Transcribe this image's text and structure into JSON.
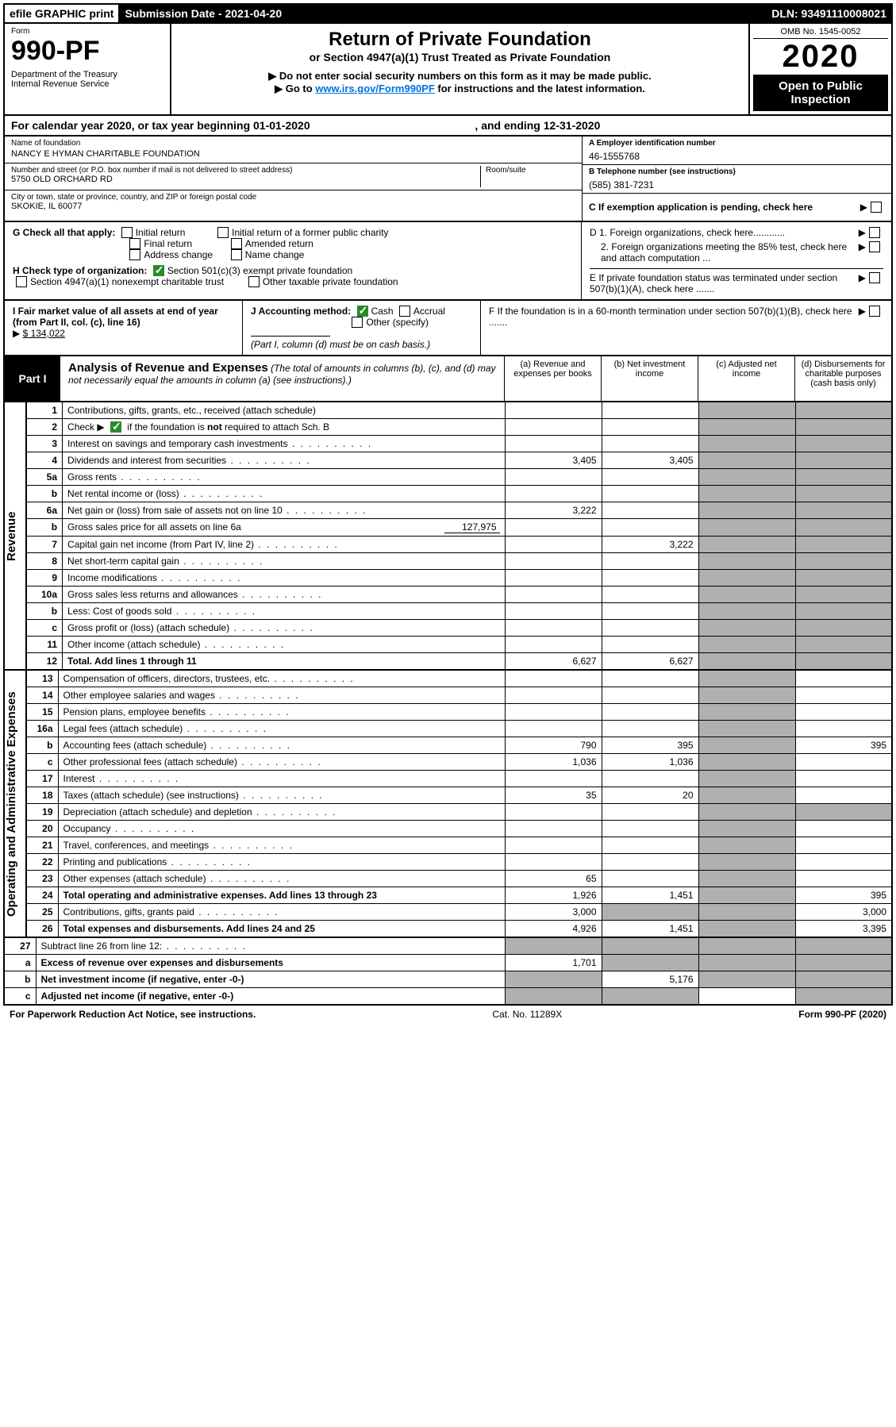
{
  "topstrip": {
    "efile": "efile GRAPHIC print",
    "subdate_lbl": "Submission Date - 2021-04-20",
    "dln_lbl": "DLN: 93491110008021"
  },
  "titleblock": {
    "form_word": "Form",
    "form_no": "990-PF",
    "dept1": "Department of the Treasury",
    "dept2": "Internal Revenue Service",
    "title": "Return of Private Foundation",
    "sub": "or Section 4947(a)(1) Trust Treated as Private Foundation",
    "warn": "▶ Do not enter social security numbers on this form as it may be made public.",
    "goto_pre": "▶ Go to ",
    "goto_link": "www.irs.gov/Form990PF",
    "goto_post": " for instructions and the latest information.",
    "omb": "OMB No. 1545-0052",
    "year": "2020",
    "open": "Open to Public Inspection"
  },
  "cal": {
    "text_a": "For calendar year 2020, or tax year beginning ",
    "begin": "01-01-2020",
    "mid": " , and ending ",
    "end": "12-31-2020"
  },
  "hdr_left": {
    "name_lbl": "Name of foundation",
    "name": "NANCY E HYMAN CHARITABLE FOUNDATION",
    "addr_lbl": "Number and street (or P.O. box number if mail is not delivered to street address)",
    "addr": "5750 OLD ORCHARD RD",
    "room_lbl": "Room/suite",
    "city_lbl": "City or town, state or province, country, and ZIP or foreign postal code",
    "city": "SKOKIE, IL  60077"
  },
  "hdr_right": {
    "a_lbl": "A Employer identification number",
    "a_val": "46-1555768",
    "b_lbl": "B Telephone number (see instructions)",
    "b_val": "(585) 381-7231",
    "c_lbl": "C If exemption application is pending, check here",
    "d1": "D 1. Foreign organizations, check here............",
    "d2": "2. Foreign organizations meeting the 85% test, check here and attach computation ...",
    "e": "E  If private foundation status was terminated under section 507(b)(1)(A), check here .......",
    "f": "F  If the foundation is in a 60-month termination under section 507(b)(1)(B), check here .......",
    "arrow": "▶"
  },
  "g": {
    "lbl": "G Check all that apply:",
    "o1": "Initial return",
    "o2": "Final return",
    "o3": "Address change",
    "o4": "Initial return of a former public charity",
    "o5": "Amended return",
    "o6": "Name change"
  },
  "h": {
    "lbl": "H Check type of organization:",
    "o1": "Section 501(c)(3) exempt private foundation",
    "o2": "Section 4947(a)(1) nonexempt charitable trust",
    "o3": "Other taxable private foundation"
  },
  "i": {
    "lbl": "I Fair market value of all assets at end of year (from Part II, col. (c), line 16)",
    "arrow": "▶",
    "val": "$  134,022"
  },
  "j": {
    "lbl": "J Accounting method:",
    "cash": "Cash",
    "accrual": "Accrual",
    "other": "Other (specify)",
    "note": "(Part I, column (d) must be on cash basis.)"
  },
  "part1": {
    "plab": "Part I",
    "title": "Analysis of Revenue and Expenses",
    "sub": " (The total of amounts in columns (b), (c), and (d) may not necessarily equal the amounts in column (a) (see instructions).)",
    "cola": "(a)   Revenue and expenses per books",
    "colb": "(b)   Net investment income",
    "colc": "(c)   Adjusted net income",
    "cold": "(d)   Disbursements for charitable purposes (cash basis only)"
  },
  "side": {
    "rev": "Revenue",
    "exp": "Operating and Administrative Expenses"
  },
  "rows": [
    {
      "n": "1",
      "d": "Contributions, gifts, grants, etc., received (attach schedule)"
    },
    {
      "n": "2",
      "d_pre": "Check ▶ ",
      "d_post": " if the foundation is ",
      "d_bold": "not",
      "d_end": " required to attach Sch. B",
      "ck": true
    },
    {
      "n": "3",
      "d": "Interest on savings and temporary cash investments"
    },
    {
      "n": "4",
      "d": "Dividends and interest from securities",
      "a": "3,405",
      "b": "3,405"
    },
    {
      "n": "5a",
      "d": "Gross rents"
    },
    {
      "n": "b",
      "d": "Net rental income or (loss)",
      "indent": true
    },
    {
      "n": "6a",
      "d": "Net gain or (loss) from sale of assets not on line 10",
      "a": "3,222"
    },
    {
      "n": "b",
      "d_pre": "Gross sales price for all assets on line 6a ",
      "inline": "127,975",
      "indent": true
    },
    {
      "n": "7",
      "d": "Capital gain net income (from Part IV, line 2)",
      "b": "3,222"
    },
    {
      "n": "8",
      "d": "Net short-term capital gain"
    },
    {
      "n": "9",
      "d": "Income modifications"
    },
    {
      "n": "10a",
      "d": "Gross sales less returns and allowances",
      "indent": true
    },
    {
      "n": "b",
      "d": "Less: Cost of goods sold",
      "indent": true
    },
    {
      "n": "c",
      "d": "Gross profit or (loss) (attach schedule)",
      "indent": true
    },
    {
      "n": "11",
      "d": "Other income (attach schedule)"
    },
    {
      "n": "12",
      "d": "Total. Add lines 1 through 11",
      "bold": true,
      "a": "6,627",
      "b": "6,627"
    }
  ],
  "exprows": [
    {
      "n": "13",
      "d": "Compensation of officers, directors, trustees, etc."
    },
    {
      "n": "14",
      "d": "Other employee salaries and wages"
    },
    {
      "n": "15",
      "d": "Pension plans, employee benefits"
    },
    {
      "n": "16a",
      "d": "Legal fees (attach schedule)"
    },
    {
      "n": "b",
      "d": "Accounting fees (attach schedule)",
      "a": "790",
      "b": "395",
      "dd": "395",
      "indent": true
    },
    {
      "n": "c",
      "d": "Other professional fees (attach schedule)",
      "a": "1,036",
      "b": "1,036",
      "indent": true
    },
    {
      "n": "17",
      "d": "Interest"
    },
    {
      "n": "18",
      "d": "Taxes (attach schedule) (see instructions)",
      "a": "35",
      "b": "20"
    },
    {
      "n": "19",
      "d": "Depreciation (attach schedule) and depletion"
    },
    {
      "n": "20",
      "d": "Occupancy"
    },
    {
      "n": "21",
      "d": "Travel, conferences, and meetings"
    },
    {
      "n": "22",
      "d": "Printing and publications"
    },
    {
      "n": "23",
      "d": "Other expenses (attach schedule)",
      "a": "65",
      "icon": true
    },
    {
      "n": "24",
      "d": "Total operating and administrative expenses. Add lines 13 through 23",
      "bold": true,
      "a": "1,926",
      "b": "1,451",
      "dd": "395"
    },
    {
      "n": "25",
      "d": "Contributions, gifts, grants paid",
      "a": "3,000",
      "dd": "3,000"
    },
    {
      "n": "26",
      "d": "Total expenses and disbursements. Add lines 24 and 25",
      "bold": true,
      "a": "4,926",
      "b": "1,451",
      "dd": "3,395"
    }
  ],
  "bottomrows": [
    {
      "n": "27",
      "d": "Subtract line 26 from line 12:"
    },
    {
      "n": "a",
      "d": "Excess of revenue over expenses and disbursements",
      "bold": true,
      "a": "1,701",
      "indent": true
    },
    {
      "n": "b",
      "d": "Net investment income (if negative, enter -0-)",
      "bold": true,
      "b": "5,176",
      "indent": true
    },
    {
      "n": "c",
      "d": "Adjusted net income (if negative, enter -0-)",
      "bold": true,
      "indent": true
    }
  ],
  "footer": {
    "left": "For Paperwork Reduction Act Notice, see instructions.",
    "mid": "Cat. No. 11289X",
    "right": "Form 990-PF (2020)"
  }
}
